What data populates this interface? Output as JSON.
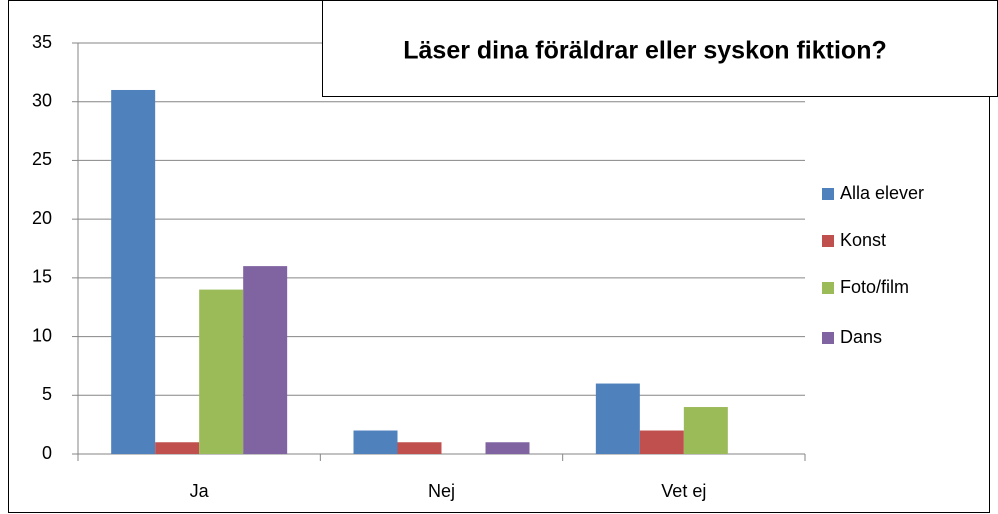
{
  "chart_data": {
    "type": "bar",
    "title": "Läser dina föräldrar eller syskon fiktion?",
    "categories": [
      "Ja",
      "Nej",
      "Vet ej"
    ],
    "series": [
      {
        "name": "Alla elever",
        "color": "#4f81bd",
        "values": [
          31,
          2,
          6
        ]
      },
      {
        "name": "Konst",
        "color": "#c0504d",
        "values": [
          1,
          1,
          2
        ]
      },
      {
        "name": "Foto/film",
        "color": "#9bbb59",
        "values": [
          14,
          0,
          4
        ]
      },
      {
        "name": "Dans",
        "color": "#8064a2",
        "values": [
          16,
          1,
          0
        ]
      }
    ],
    "ylim": [
      0,
      35
    ],
    "yticks": [
      0,
      5,
      10,
      15,
      20,
      25,
      30,
      35
    ],
    "grid": true,
    "legend": "right"
  }
}
